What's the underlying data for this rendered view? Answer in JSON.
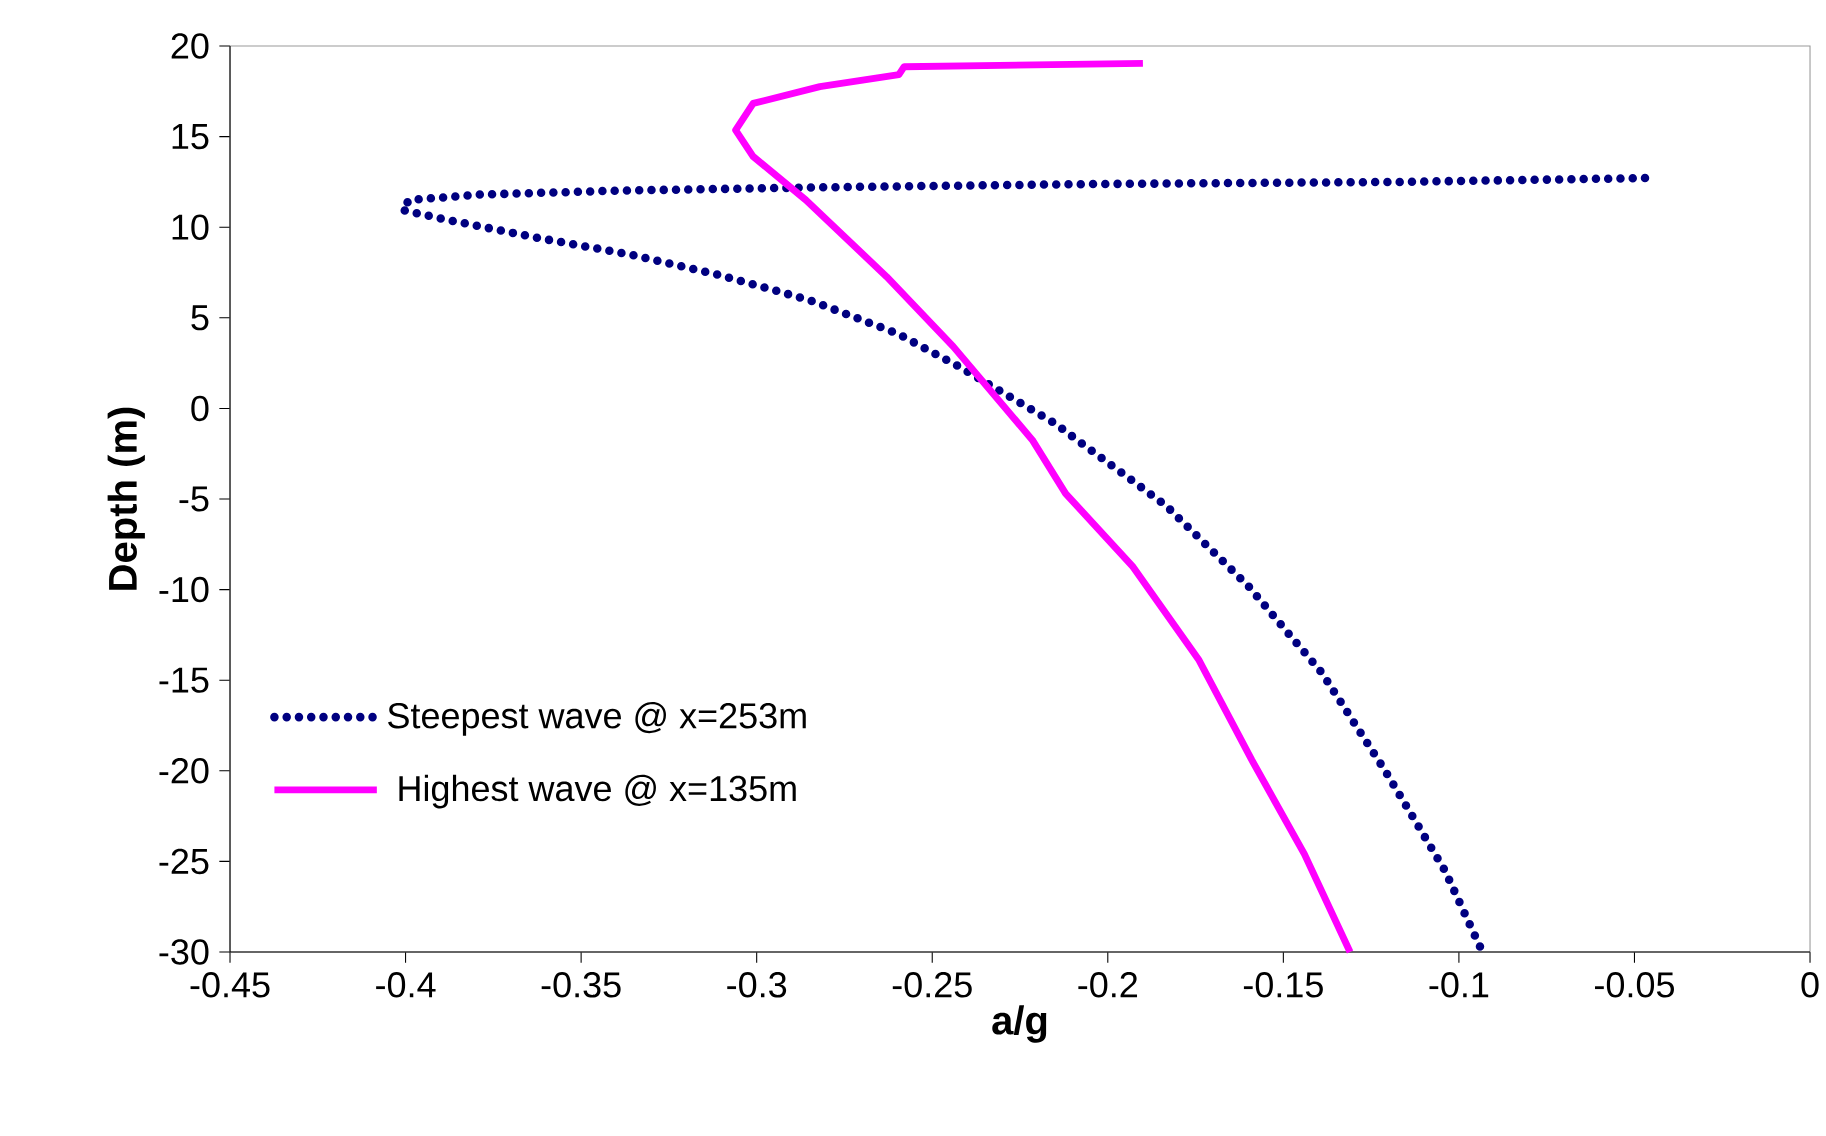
{
  "chart_data": {
    "type": "line",
    "xlabel": "a/g",
    "ylabel": "Depth (m)",
    "xlim": [
      -0.45,
      0
    ],
    "ylim": [
      -30,
      20
    ],
    "xticks": [
      -0.45,
      -0.4,
      -0.35,
      -0.3,
      -0.25,
      -0.2,
      -0.15,
      -0.1,
      -0.05,
      0
    ],
    "yticks": [
      -30,
      -25,
      -20,
      -15,
      -10,
      -5,
      0,
      5,
      10,
      15,
      20
    ],
    "legend": "bottom left",
    "marker": "none",
    "grid": false,
    "series": [
      {
        "name": "Steepest wave @ x=253m",
        "color": "#000080",
        "line_style": "dotted",
        "x": [
          -0.094,
          -0.104,
          -0.121,
          -0.139,
          -0.16,
          -0.1835,
          -0.21,
          -0.215,
          -0.243,
          -0.26,
          -0.285,
          -0.311,
          -0.336,
          -0.362,
          -0.388,
          -0.401,
          -0.399,
          -0.379,
          -0.339,
          -0.282,
          -0.206,
          -0.117,
          -0.044
        ],
        "values": [
          -29.7,
          -25.5,
          -20,
          -14.6,
          -9.8,
          -5.35,
          -1.56,
          -0.83,
          2.37,
          4.14,
          5.98,
          7.38,
          8.49,
          9.4,
          10.4,
          10.95,
          11.5,
          11.8,
          12.02,
          12.2,
          12.38,
          12.5,
          12.72
        ]
      },
      {
        "name": "Highest wave @ x=135m",
        "color": "#ff00ff",
        "line_style": "solid",
        "x": [
          -0.131,
          -0.144,
          -0.159,
          -0.174,
          -0.193,
          -0.212,
          -0.2215,
          -0.244,
          -0.263,
          -0.286,
          -0.301,
          -0.306,
          -0.301,
          -0.282,
          -0.2595,
          -0.258,
          -0.19
        ],
        "values": [
          -30,
          -24.6,
          -19.4,
          -13.9,
          -8.7,
          -4.7,
          -1.74,
          3.41,
          7.27,
          11.5,
          13.9,
          15.36,
          16.83,
          17.76,
          18.42,
          18.86,
          19.04
        ]
      }
    ]
  }
}
